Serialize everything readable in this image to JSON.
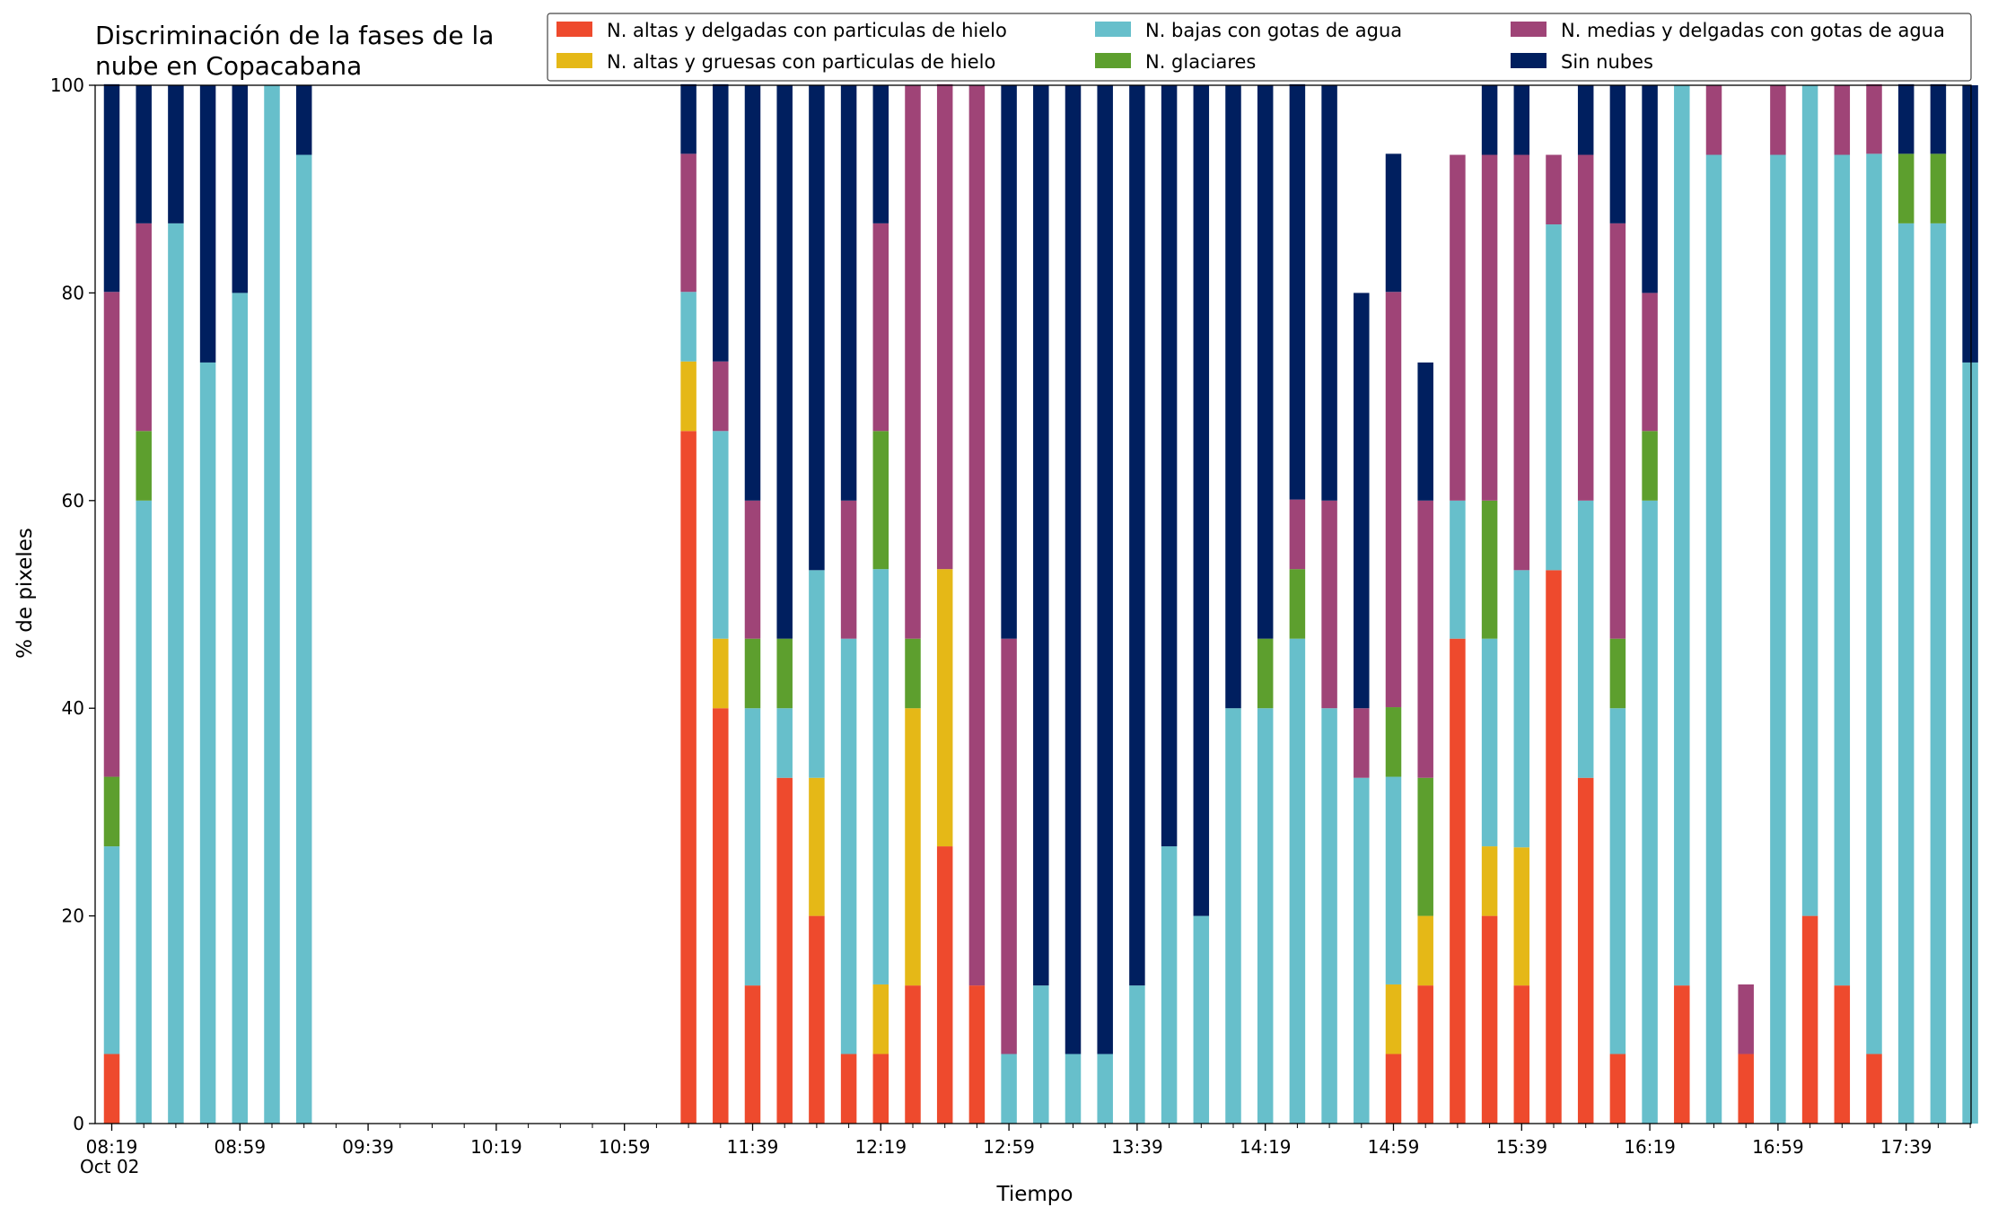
{
  "chart_data": {
    "type": "bar",
    "stacked": true,
    "title": [
      "Discriminación de la fases de la",
      "nube en Copacabana"
    ],
    "xlabel": "Tiempo",
    "ylabel": "% de pixeles",
    "ylim": [
      0,
      100
    ],
    "yticks": [
      0,
      20,
      40,
      60,
      80,
      100
    ],
    "xtick_labels": [
      "08:19",
      "08:59",
      "09:39",
      "10:19",
      "10:59",
      "11:39",
      "12:19",
      "12:59",
      "13:39",
      "14:19",
      "14:59",
      "15:39",
      "16:19",
      "16:59",
      "17:39"
    ],
    "xtick_date_label": "Oct 02",
    "time_start": "08:19",
    "time_step_minutes": 10,
    "legend_placement": "top-right",
    "series": [
      {
        "name": "N. altas y delgadas con particulas de hielo",
        "color": "#ee4a2d",
        "values": [
          6.7,
          0,
          0,
          0,
          0,
          0,
          0,
          null,
          null,
          null,
          null,
          null,
          null,
          null,
          null,
          null,
          null,
          null,
          66.7,
          40,
          13.3,
          33.3,
          20,
          6.7,
          6.7,
          13.3,
          26.7,
          13.3,
          0,
          0,
          0,
          0,
          0,
          0,
          0,
          0,
          0,
          0,
          0,
          0,
          6.7,
          13.3,
          46.7,
          20,
          13.3,
          53.3,
          33.3,
          6.7,
          0,
          13.3,
          0,
          6.7,
          0,
          20,
          13.3,
          6.7,
          0,
          0,
          0
        ]
      },
      {
        "name": "N. altas y gruesas con particulas de hielo",
        "color": "#e5b817",
        "values": [
          0,
          0,
          0,
          0,
          0,
          0,
          0,
          null,
          null,
          null,
          null,
          null,
          null,
          null,
          null,
          null,
          null,
          null,
          6.7,
          6.7,
          0,
          0,
          13.3,
          0,
          6.7,
          26.7,
          26.7,
          0,
          0,
          0,
          0,
          0,
          0,
          0,
          0,
          0,
          0,
          0,
          0,
          0,
          6.7,
          6.7,
          0,
          6.7,
          13.3,
          0,
          0,
          0,
          0,
          0,
          0,
          0,
          0,
          0,
          0,
          0,
          0,
          0,
          0
        ]
      },
      {
        "name": "N. bajas con gotas de agua",
        "color": "#67bfcb",
        "values": [
          20,
          60,
          86.7,
          73.3,
          80,
          100,
          93.3,
          null,
          null,
          null,
          null,
          null,
          null,
          null,
          null,
          null,
          null,
          null,
          6.7,
          20,
          26.7,
          6.7,
          20,
          40,
          40,
          0,
          0,
          0,
          6.7,
          13.3,
          6.7,
          6.7,
          13.3,
          26.7,
          20,
          40,
          40,
          46.7,
          40,
          33.3,
          20,
          0,
          13.3,
          20,
          26.7,
          33.3,
          26.7,
          33.3,
          60,
          86.7,
          93.3,
          0,
          93.3,
          80,
          80,
          86.7,
          86.7,
          86.7,
          73.3
        ]
      },
      {
        "name": "N. glaciares",
        "color": "#5d9f2e",
        "values": [
          6.7,
          6.7,
          0,
          0,
          0,
          0,
          0,
          null,
          null,
          null,
          null,
          null,
          null,
          null,
          null,
          null,
          null,
          null,
          0,
          0,
          6.7,
          6.7,
          0,
          0,
          13.3,
          6.7,
          0,
          0,
          0,
          0,
          0,
          0,
          0,
          0,
          0,
          0,
          6.7,
          6.7,
          0,
          0,
          6.7,
          13.3,
          0,
          13.3,
          0,
          0,
          0,
          6.7,
          6.7,
          0,
          0,
          0,
          0,
          0,
          0,
          0,
          6.7,
          6.7,
          0
        ]
      },
      {
        "name": "N. medias y delgadas con gotas de agua",
        "color": "#9f4477",
        "values": [
          46.7,
          20,
          0,
          0,
          0,
          0,
          0,
          null,
          null,
          null,
          null,
          null,
          null,
          null,
          null,
          null,
          null,
          null,
          13.3,
          6.7,
          13.3,
          0,
          0,
          13.3,
          20,
          53.3,
          46.7,
          86.7,
          40,
          0,
          0,
          0,
          0,
          0,
          0,
          0,
          0,
          6.7,
          20,
          6.7,
          40,
          26.7,
          33.3,
          33.3,
          40,
          6.7,
          33.3,
          40,
          13.3,
          0,
          6.7,
          6.7,
          6.7,
          0,
          6.7,
          6.7,
          0,
          0,
          0
        ]
      },
      {
        "name": "Sin nubes",
        "color": "#001f5f",
        "values": [
          20,
          13.3,
          13.3,
          26.7,
          20,
          0,
          6.7,
          null,
          null,
          null,
          null,
          null,
          null,
          null,
          null,
          null,
          null,
          null,
          6.7,
          26.7,
          40,
          53.3,
          46.7,
          40,
          13.3,
          0,
          0,
          0,
          53.3,
          86.7,
          93.3,
          93.3,
          86.7,
          73.3,
          80,
          60,
          53.3,
          40,
          40,
          40,
          13.3,
          13.3,
          0,
          6.7,
          6.7,
          0,
          6.7,
          13.3,
          20,
          0,
          0,
          0,
          0,
          0,
          0,
          0,
          6.7,
          6.7,
          26.7
        ]
      }
    ]
  }
}
